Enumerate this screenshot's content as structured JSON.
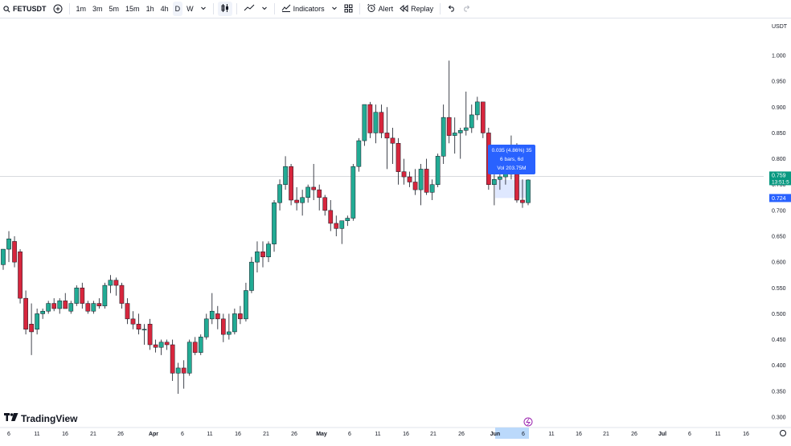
{
  "toolbar": {
    "symbol": "FETUSDT",
    "intervals": [
      "1m",
      "3m",
      "5m",
      "15m",
      "1h",
      "4h",
      "D",
      "W"
    ],
    "active_interval": "D",
    "indicators_label": "Indicators",
    "alert_label": "Alert",
    "replay_label": "Replay"
  },
  "price_axis": {
    "currency": "USDT",
    "ticks": [
      "1.000",
      "0.950",
      "0.900",
      "0.850",
      "0.800",
      "0.750",
      "0.700",
      "0.650",
      "0.600",
      "0.550",
      "0.500",
      "0.450",
      "0.400",
      "0.350",
      "0.300"
    ],
    "last_price": "0.759",
    "countdown": "13:51:5",
    "measure_price": "0.724"
  },
  "time_axis": {
    "ticks": [
      "6",
      "11",
      "16",
      "21",
      "26",
      "Apr",
      "6",
      "11",
      "16",
      "21",
      "26",
      "May",
      "6",
      "11",
      "16",
      "21",
      "26",
      "Jun",
      "6",
      "11",
      "16",
      "21",
      "26",
      "Jul",
      "6",
      "11",
      "16"
    ],
    "highlight_label": "Jun"
  },
  "measure_tooltip": {
    "line1": "0.035 (4.86%) 35",
    "line2": "6 bars, 6d",
    "line3": "Vol 203.75M"
  },
  "branding": {
    "logo_text": "TradingView"
  },
  "colors": {
    "up": "#26a69a",
    "down": "#ef5350",
    "up_fill": "#22ab94",
    "down_fill": "#d7263d",
    "accent": "#2962ff",
    "last_price_bg": "#089981"
  },
  "chart_data": {
    "type": "candlestick",
    "symbol": "FETUSDT",
    "timeframe": "D",
    "ylim": [
      0.28,
      1.06
    ],
    "candles": [
      {
        "o": 0.595,
        "h": 0.625,
        "l": 0.585,
        "c": 0.625
      },
      {
        "o": 0.625,
        "h": 0.66,
        "l": 0.6,
        "c": 0.645
      },
      {
        "o": 0.64,
        "h": 0.65,
        "l": 0.59,
        "c": 0.6
      },
      {
        "o": 0.62,
        "h": 0.625,
        "l": 0.52,
        "c": 0.53
      },
      {
        "o": 0.53,
        "h": 0.545,
        "l": 0.46,
        "c": 0.47
      },
      {
        "o": 0.48,
        "h": 0.52,
        "l": 0.42,
        "c": 0.465
      },
      {
        "o": 0.47,
        "h": 0.51,
        "l": 0.46,
        "c": 0.5
      },
      {
        "o": 0.5,
        "h": 0.51,
        "l": 0.49,
        "c": 0.505
      },
      {
        "o": 0.505,
        "h": 0.525,
        "l": 0.5,
        "c": 0.52
      },
      {
        "o": 0.52,
        "h": 0.53,
        "l": 0.505,
        "c": 0.51
      },
      {
        "o": 0.51,
        "h": 0.53,
        "l": 0.5,
        "c": 0.525
      },
      {
        "o": 0.525,
        "h": 0.54,
        "l": 0.51,
        "c": 0.51
      },
      {
        "o": 0.505,
        "h": 0.525,
        "l": 0.5,
        "c": 0.52
      },
      {
        "o": 0.52,
        "h": 0.555,
        "l": 0.515,
        "c": 0.55
      },
      {
        "o": 0.55,
        "h": 0.56,
        "l": 0.51,
        "c": 0.52
      },
      {
        "o": 0.52,
        "h": 0.525,
        "l": 0.5,
        "c": 0.505
      },
      {
        "o": 0.505,
        "h": 0.525,
        "l": 0.5,
        "c": 0.52
      },
      {
        "o": 0.52,
        "h": 0.53,
        "l": 0.51,
        "c": 0.515
      },
      {
        "o": 0.515,
        "h": 0.56,
        "l": 0.51,
        "c": 0.555
      },
      {
        "o": 0.555,
        "h": 0.575,
        "l": 0.54,
        "c": 0.565
      },
      {
        "o": 0.565,
        "h": 0.57,
        "l": 0.535,
        "c": 0.555
      },
      {
        "o": 0.555,
        "h": 0.56,
        "l": 0.51,
        "c": 0.52
      },
      {
        "o": 0.52,
        "h": 0.53,
        "l": 0.48,
        "c": 0.49
      },
      {
        "o": 0.49,
        "h": 0.505,
        "l": 0.47,
        "c": 0.48
      },
      {
        "o": 0.48,
        "h": 0.5,
        "l": 0.46,
        "c": 0.47
      },
      {
        "o": 0.47,
        "h": 0.48,
        "l": 0.44,
        "c": 0.47
      },
      {
        "o": 0.48,
        "h": 0.49,
        "l": 0.43,
        "c": 0.44
      },
      {
        "o": 0.44,
        "h": 0.45,
        "l": 0.425,
        "c": 0.435
      },
      {
        "o": 0.435,
        "h": 0.45,
        "l": 0.42,
        "c": 0.445
      },
      {
        "o": 0.445,
        "h": 0.45,
        "l": 0.43,
        "c": 0.44
      },
      {
        "o": 0.44,
        "h": 0.45,
        "l": 0.37,
        "c": 0.385
      },
      {
        "o": 0.385,
        "h": 0.405,
        "l": 0.345,
        "c": 0.395
      },
      {
        "o": 0.395,
        "h": 0.41,
        "l": 0.355,
        "c": 0.385
      },
      {
        "o": 0.385,
        "h": 0.45,
        "l": 0.38,
        "c": 0.445
      },
      {
        "o": 0.445,
        "h": 0.455,
        "l": 0.42,
        "c": 0.425
      },
      {
        "o": 0.425,
        "h": 0.46,
        "l": 0.42,
        "c": 0.455
      },
      {
        "o": 0.455,
        "h": 0.5,
        "l": 0.45,
        "c": 0.49
      },
      {
        "o": 0.49,
        "h": 0.54,
        "l": 0.48,
        "c": 0.505
      },
      {
        "o": 0.5,
        "h": 0.515,
        "l": 0.47,
        "c": 0.49
      },
      {
        "o": 0.49,
        "h": 0.5,
        "l": 0.445,
        "c": 0.46
      },
      {
        "o": 0.46,
        "h": 0.5,
        "l": 0.45,
        "c": 0.465
      },
      {
        "o": 0.465,
        "h": 0.51,
        "l": 0.46,
        "c": 0.5
      },
      {
        "o": 0.5,
        "h": 0.515,
        "l": 0.48,
        "c": 0.49
      },
      {
        "o": 0.49,
        "h": 0.56,
        "l": 0.485,
        "c": 0.545
      },
      {
        "o": 0.545,
        "h": 0.61,
        "l": 0.54,
        "c": 0.6
      },
      {
        "o": 0.6,
        "h": 0.64,
        "l": 0.58,
        "c": 0.62
      },
      {
        "o": 0.62,
        "h": 0.64,
        "l": 0.59,
        "c": 0.61
      },
      {
        "o": 0.61,
        "h": 0.64,
        "l": 0.6,
        "c": 0.635
      },
      {
        "o": 0.635,
        "h": 0.72,
        "l": 0.62,
        "c": 0.715
      },
      {
        "o": 0.715,
        "h": 0.76,
        "l": 0.7,
        "c": 0.75
      },
      {
        "o": 0.75,
        "h": 0.805,
        "l": 0.74,
        "c": 0.785
      },
      {
        "o": 0.785,
        "h": 0.79,
        "l": 0.71,
        "c": 0.72
      },
      {
        "o": 0.72,
        "h": 0.745,
        "l": 0.7,
        "c": 0.715
      },
      {
        "o": 0.715,
        "h": 0.74,
        "l": 0.69,
        "c": 0.725
      },
      {
        "o": 0.725,
        "h": 0.75,
        "l": 0.715,
        "c": 0.745
      },
      {
        "o": 0.745,
        "h": 0.79,
        "l": 0.72,
        "c": 0.74
      },
      {
        "o": 0.74,
        "h": 0.75,
        "l": 0.7,
        "c": 0.725
      },
      {
        "o": 0.725,
        "h": 0.73,
        "l": 0.69,
        "c": 0.7
      },
      {
        "o": 0.7,
        "h": 0.72,
        "l": 0.66,
        "c": 0.675
      },
      {
        "o": 0.675,
        "h": 0.69,
        "l": 0.65,
        "c": 0.665
      },
      {
        "o": 0.665,
        "h": 0.68,
        "l": 0.635,
        "c": 0.68
      },
      {
        "o": 0.68,
        "h": 0.69,
        "l": 0.67,
        "c": 0.685
      },
      {
        "o": 0.685,
        "h": 0.79,
        "l": 0.68,
        "c": 0.785
      },
      {
        "o": 0.785,
        "h": 0.84,
        "l": 0.775,
        "c": 0.835
      },
      {
        "o": 0.835,
        "h": 0.905,
        "l": 0.825,
        "c": 0.905
      },
      {
        "o": 0.905,
        "h": 0.91,
        "l": 0.84,
        "c": 0.85
      },
      {
        "o": 0.85,
        "h": 0.905,
        "l": 0.83,
        "c": 0.89
      },
      {
        "o": 0.89,
        "h": 0.905,
        "l": 0.84,
        "c": 0.85
      },
      {
        "o": 0.85,
        "h": 0.9,
        "l": 0.78,
        "c": 0.84
      },
      {
        "o": 0.84,
        "h": 0.86,
        "l": 0.79,
        "c": 0.83
      },
      {
        "o": 0.83,
        "h": 0.84,
        "l": 0.75,
        "c": 0.775
      },
      {
        "o": 0.775,
        "h": 0.8,
        "l": 0.75,
        "c": 0.765
      },
      {
        "o": 0.765,
        "h": 0.775,
        "l": 0.745,
        "c": 0.755
      },
      {
        "o": 0.755,
        "h": 0.78,
        "l": 0.73,
        "c": 0.74
      },
      {
        "o": 0.74,
        "h": 0.79,
        "l": 0.71,
        "c": 0.78
      },
      {
        "o": 0.78,
        "h": 0.8,
        "l": 0.73,
        "c": 0.735
      },
      {
        "o": 0.735,
        "h": 0.76,
        "l": 0.72,
        "c": 0.75
      },
      {
        "o": 0.75,
        "h": 0.81,
        "l": 0.745,
        "c": 0.805
      },
      {
        "o": 0.805,
        "h": 0.905,
        "l": 0.79,
        "c": 0.88
      },
      {
        "o": 0.88,
        "h": 0.99,
        "l": 0.83,
        "c": 0.845
      },
      {
        "o": 0.845,
        "h": 0.88,
        "l": 0.81,
        "c": 0.85
      },
      {
        "o": 0.85,
        "h": 0.86,
        "l": 0.8,
        "c": 0.855
      },
      {
        "o": 0.855,
        "h": 0.93,
        "l": 0.845,
        "c": 0.86
      },
      {
        "o": 0.86,
        "h": 0.905,
        "l": 0.85,
        "c": 0.885
      },
      {
        "o": 0.885,
        "h": 0.92,
        "l": 0.875,
        "c": 0.91
      },
      {
        "o": 0.91,
        "h": 0.91,
        "l": 0.84,
        "c": 0.85
      },
      {
        "o": 0.85,
        "h": 0.86,
        "l": 0.74,
        "c": 0.75
      },
      {
        "o": 0.75,
        "h": 0.78,
        "l": 0.71,
        "c": 0.76
      },
      {
        "o": 0.76,
        "h": 0.79,
        "l": 0.74,
        "c": 0.765
      },
      {
        "o": 0.765,
        "h": 0.815,
        "l": 0.75,
        "c": 0.795
      },
      {
        "o": 0.795,
        "h": 0.845,
        "l": 0.76,
        "c": 0.77
      },
      {
        "o": 0.77,
        "h": 0.83,
        "l": 0.715,
        "c": 0.72
      },
      {
        "o": 0.72,
        "h": 0.76,
        "l": 0.705,
        "c": 0.715
      },
      {
        "o": 0.715,
        "h": 0.76,
        "l": 0.71,
        "c": 0.759
      }
    ]
  }
}
